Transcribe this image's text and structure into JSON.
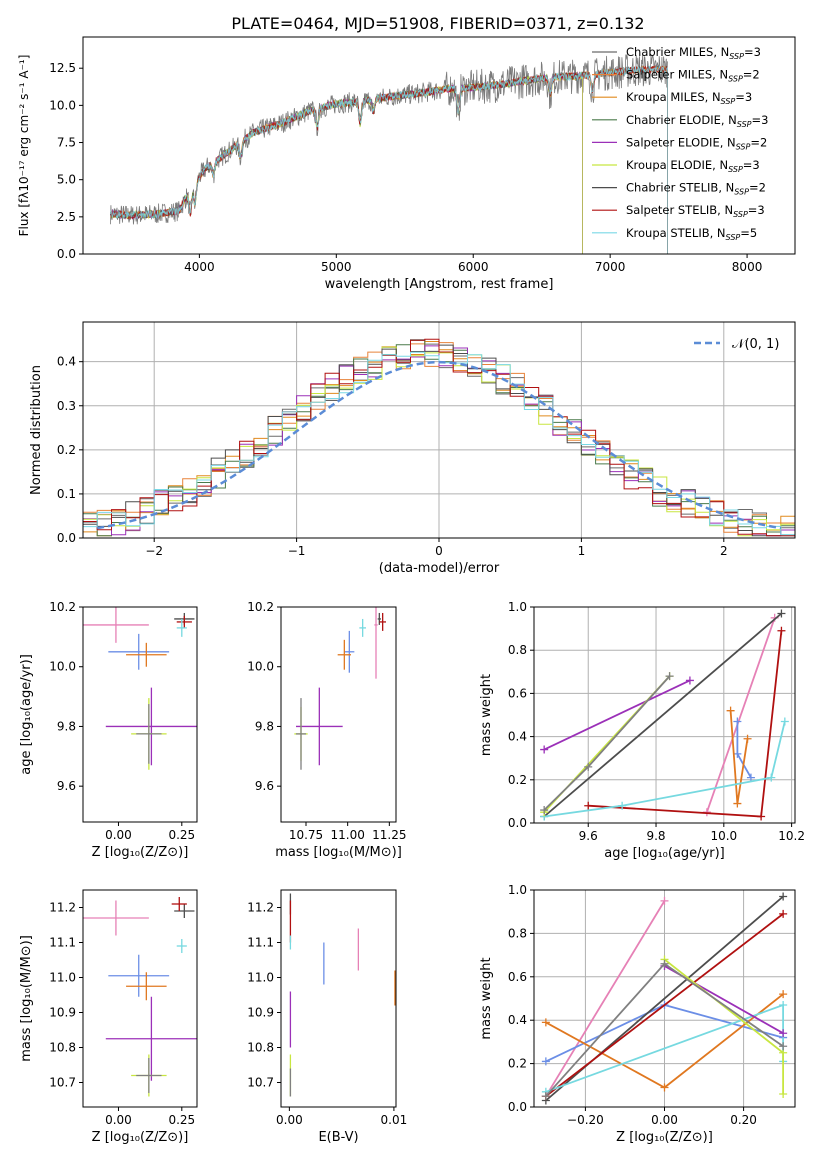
{
  "figure": {
    "title": "PLATE=0464, MJD=51908, FIBERID=0371, z=0.132"
  },
  "colors": {
    "models": [
      "#6b6b6b",
      "#e8833a",
      "#e08a1e",
      "#4a7a4a",
      "#9b30b8",
      "#c8e640",
      "#4d4d4d",
      "#b01010",
      "#7ad8e6"
    ],
    "cases": [
      "#e681b6",
      "#6b8ee6",
      "#e07820",
      "#4d4d4d",
      "#b01010",
      "#76d9e0",
      "#9b30b8",
      "#c8e640",
      "#808080"
    ],
    "gauss": "#5b8cd6",
    "grid": "#b0b0b0"
  },
  "chart_data": [
    {
      "id": "spectrum",
      "type": "line",
      "xlabel": "wavelength [Angstrom, rest frame]",
      "ylabel": "Flux [fλ10⁻¹⁷ erg cm⁻² s⁻¹ A⁻¹]",
      "xlim": [
        3150,
        8350
      ],
      "ylim": [
        0,
        14.6
      ],
      "xticks": [
        4000,
        5000,
        6000,
        7000,
        8000
      ],
      "yticks": [
        0.0,
        2.5,
        5.0,
        7.5,
        10.0,
        12.5
      ],
      "legend_position": "top-right",
      "continuum": {
        "x": [
          3350,
          3500,
          3700,
          3850,
          3950,
          4050,
          4200,
          4400,
          4600,
          4800,
          5000,
          5200,
          5400,
          5600,
          5800,
          6000,
          6200,
          6400,
          6600,
          6800,
          7000,
          7200,
          7400
        ],
        "y": [
          2.7,
          2.6,
          2.7,
          2.9,
          4.6,
          5.8,
          6.8,
          8.2,
          8.8,
          9.6,
          10.1,
          10.3,
          10.6,
          10.8,
          11.1,
          11.2,
          11.4,
          11.7,
          11.9,
          12.0,
          12.2,
          12.4,
          12.4
        ]
      },
      "series": [
        {
          "name": "Chabrier MILES, N_SSP=3",
          "xmax": 7420
        },
        {
          "name": "Salpeter MILES, N_SSP=2",
          "xmax": 7420
        },
        {
          "name": "Kroupa MILES, N_SSP=3",
          "xmax": 7420
        },
        {
          "name": "Chabrier ELODIE, N_SSP=3",
          "xmax": 6800
        },
        {
          "name": "Salpeter ELODIE, N_SSP=2",
          "xmax": 6800
        },
        {
          "name": "Kroupa ELODIE, N_SSP=3",
          "xmax": 6800
        },
        {
          "name": "Chabrier STELIB, N_SSP=2",
          "xmax": 7420
        },
        {
          "name": "Salpeter STELIB, N_SSP=3",
          "xmax": 7420
        },
        {
          "name": "Kroupa STELIB, N_SSP=5",
          "xmax": 7420
        }
      ]
    },
    {
      "id": "residuals",
      "type": "histogram",
      "xlabel": "(data-model)/error",
      "ylabel": "Normed distribution",
      "xlim": [
        -2.5,
        2.5
      ],
      "ylim": [
        0,
        0.49
      ],
      "xticks": [
        -2,
        -1,
        0,
        1,
        2
      ],
      "yticks": [
        0.0,
        0.1,
        0.2,
        0.3,
        0.4
      ],
      "grid": true,
      "legend_position": "top-right",
      "legend": [
        "𝒩(0, 1)"
      ],
      "bin_width": 0.1
    },
    {
      "id": "age_vs_Z",
      "type": "errorbar",
      "xlabel": "Z [log₁₀(Z/Z⊙)]",
      "ylabel": "age  [log₁₀(age/yr)]",
      "xlim": [
        -0.14,
        0.31
      ],
      "ylim": [
        9.48,
        10.2
      ],
      "xticks": [
        0.0,
        0.25
      ],
      "yticks": [
        9.6,
        9.8,
        10.0,
        10.2
      ],
      "points": [
        {
          "x": -0.01,
          "y": 10.14,
          "xerr": 0.13,
          "yerr": 0.06
        },
        {
          "x": 0.08,
          "y": 10.05,
          "xerr": 0.12,
          "yerr": 0.06
        },
        {
          "x": 0.11,
          "y": 10.04,
          "xerr": 0.08,
          "yerr": 0.04
        },
        {
          "x": 0.26,
          "y": 10.16,
          "xerr": 0.04,
          "yerr": 0.02
        },
        {
          "x": 0.26,
          "y": 10.15,
          "xerr": 0.03,
          "yerr": 0.02
        },
        {
          "x": 0.25,
          "y": 10.13,
          "xerr": 0.02,
          "yerr": 0.03
        },
        {
          "x": 0.13,
          "y": 9.8,
          "xerr": 0.18,
          "yerr": 0.13
        },
        {
          "x": 0.12,
          "y": 9.775,
          "xerr": 0.07,
          "yerr": 0.12
        },
        {
          "x": 0.12,
          "y": 9.775,
          "xerr": 0.05,
          "yerr": 0.1
        }
      ]
    },
    {
      "id": "age_vs_mass",
      "type": "errorbar",
      "xlabel": "mass [log₁₀(M/M⊙)]",
      "xlim": [
        10.6,
        11.29
      ],
      "ylim": [
        9.48,
        10.2
      ],
      "xticks": [
        10.75,
        11.0,
        11.25
      ],
      "yticks": [
        9.6,
        9.8,
        10.0,
        10.2
      ],
      "points": [
        {
          "x": 11.17,
          "y": 10.14,
          "xerr": 0.01,
          "yerr": 0.18
        },
        {
          "x": 11.01,
          "y": 10.05,
          "xerr": 0.03,
          "yerr": 0.07
        },
        {
          "x": 10.98,
          "y": 10.04,
          "xerr": 0.04,
          "yerr": 0.05
        },
        {
          "x": 11.19,
          "y": 10.16,
          "xerr": 0.01,
          "yerr": 0.02
        },
        {
          "x": 11.21,
          "y": 10.15,
          "xerr": 0.02,
          "yerr": 0.03
        },
        {
          "x": 11.09,
          "y": 10.13,
          "xerr": 0.02,
          "yerr": 0.03
        },
        {
          "x": 10.83,
          "y": 9.8,
          "xerr": 0.14,
          "yerr": 0.13
        },
        {
          "x": 10.72,
          "y": 9.775,
          "xerr": 0.04,
          "yerr": 0.09
        },
        {
          "x": 10.72,
          "y": 9.775,
          "xerr": 0.03,
          "yerr": 0.12
        }
      ]
    },
    {
      "id": "weight_vs_age",
      "type": "line",
      "xlabel": "age  [log₁₀(age/yr)]",
      "ylabel": "mass weight",
      "xlim": [
        9.44,
        10.21
      ],
      "ylim": [
        0,
        1.0
      ],
      "xticks": [
        9.6,
        9.8,
        10.0,
        10.2
      ],
      "yticks": [
        0.0,
        0.2,
        0.4,
        0.6,
        0.8,
        1.0
      ],
      "grid": true,
      "series": [
        {
          "x": [
            9.95,
            10.15
          ],
          "y": [
            0.05,
            0.95
          ]
        },
        {
          "x": [
            10.04,
            10.04,
            10.08
          ],
          "y": [
            0.47,
            0.32,
            0.21
          ]
        },
        {
          "x": [
            10.02,
            10.04,
            10.07
          ],
          "y": [
            0.52,
            0.09,
            0.39
          ]
        },
        {
          "x": [
            9.47,
            10.17
          ],
          "y": [
            0.03,
            0.97
          ]
        },
        {
          "x": [
            9.6,
            10.11,
            10.17
          ],
          "y": [
            0.08,
            0.03,
            0.89
          ]
        },
        {
          "x": [
            9.47,
            9.7,
            10.14,
            10.18
          ],
          "y": [
            0.03,
            0.08,
            0.21,
            0.47
          ]
        },
        {
          "x": [
            9.47,
            9.9
          ],
          "y": [
            0.34,
            0.66
          ]
        },
        {
          "x": [
            9.47,
            9.84
          ],
          "y": [
            0.05,
            0.68
          ]
        },
        {
          "x": [
            9.47,
            9.6,
            9.84
          ],
          "y": [
            0.06,
            0.26,
            0.68
          ]
        }
      ]
    },
    {
      "id": "mass_vs_Z",
      "type": "errorbar",
      "xlabel": "Z [log₁₀(Z/Z⊙)]",
      "ylabel": "mass [log₁₀(M/M⊙)]",
      "xlim": [
        -0.14,
        0.31
      ],
      "ylim": [
        10.63,
        11.25
      ],
      "xticks": [
        0.0,
        0.25
      ],
      "yticks": [
        10.7,
        10.8,
        10.9,
        11.0,
        11.1,
        11.2
      ],
      "points": [
        {
          "x": -0.01,
          "y": 11.17,
          "xerr": 0.13,
          "yerr": 0.05
        },
        {
          "x": 0.08,
          "y": 11.005,
          "xerr": 0.12,
          "yerr": 0.06
        },
        {
          "x": 0.11,
          "y": 10.975,
          "xerr": 0.08,
          "yerr": 0.04
        },
        {
          "x": 0.26,
          "y": 11.19,
          "xerr": 0.04,
          "yerr": 0.02
        },
        {
          "x": 0.24,
          "y": 11.21,
          "xerr": 0.03,
          "yerr": 0.02
        },
        {
          "x": 0.25,
          "y": 11.09,
          "xerr": 0.02,
          "yerr": 0.02
        },
        {
          "x": 0.13,
          "y": 10.825,
          "xerr": 0.18,
          "yerr": 0.12
        },
        {
          "x": 0.12,
          "y": 10.72,
          "xerr": 0.07,
          "yerr": 0.06
        },
        {
          "x": 0.12,
          "y": 10.72,
          "xerr": 0.05,
          "yerr": 0.05
        }
      ]
    },
    {
      "id": "mass_vs_ebv",
      "type": "errorbar",
      "xlabel": "E(B-V)",
      "xlim": [
        -0.0008,
        0.0102
      ],
      "ylim": [
        10.63,
        11.25
      ],
      "xticks": [
        0.0,
        0.01
      ],
      "yticks": [
        10.7,
        10.8,
        10.9,
        11.0,
        11.1,
        11.2
      ],
      "points": [
        {
          "x": 0.0066,
          "y": 11.08,
          "xerr": 0,
          "yerr": 0.06
        },
        {
          "x": 0.0033,
          "y": 11.04,
          "xerr": 0,
          "yerr": 0.06
        },
        {
          "x": 0.0101,
          "y": 10.97,
          "xerr": 0,
          "yerr": 0.05
        },
        {
          "x": 0.0001,
          "y": 11.21,
          "xerr": 0,
          "yerr": 0.03
        },
        {
          "x": 0.0001,
          "y": 11.16,
          "xerr": 0,
          "yerr": 0.06
        },
        {
          "x": 0.0001,
          "y": 11.1,
          "xerr": 0,
          "yerr": 0.02
        },
        {
          "x": 0.0001,
          "y": 10.88,
          "xerr": 0,
          "yerr": 0.08
        },
        {
          "x": 0.0001,
          "y": 10.72,
          "xerr": 0,
          "yerr": 0.06
        },
        {
          "x": 0.0001,
          "y": 10.7,
          "xerr": 0,
          "yerr": 0.04
        }
      ]
    },
    {
      "id": "weight_vs_Z",
      "type": "line",
      "xlabel": "Z [log₁₀(Z/Z⊙)]",
      "ylabel": "mass weight",
      "xlim": [
        -0.33,
        0.33
      ],
      "ylim": [
        0,
        1.0
      ],
      "xticks": [
        -0.2,
        0.0,
        0.2
      ],
      "yticks": [
        0.0,
        0.2,
        0.4,
        0.6,
        0.8,
        1.0
      ],
      "grid": true,
      "series": [
        {
          "x": [
            -0.3,
            0.0
          ],
          "y": [
            0.05,
            0.95
          ]
        },
        {
          "x": [
            -0.3,
            0.0,
            0.3
          ],
          "y": [
            0.21,
            0.47,
            0.32
          ]
        },
        {
          "x": [
            -0.3,
            0.0,
            0.3
          ],
          "y": [
            0.39,
            0.09,
            0.52
          ]
        },
        {
          "x": [
            -0.3,
            0.3
          ],
          "y": [
            0.03,
            0.97
          ]
        },
        {
          "x": [
            -0.3,
            0.3
          ],
          "y": [
            0.05,
            0.89
          ]
        },
        {
          "x": [
            -0.3,
            0.3,
            0.3
          ],
          "y": [
            0.07,
            0.47,
            0.21
          ]
        },
        {
          "x": [
            0.0,
            0.3
          ],
          "y": [
            0.65,
            0.34
          ]
        },
        {
          "x": [
            0.0,
            0.3,
            0.3
          ],
          "y": [
            0.68,
            0.25,
            0.06
          ]
        },
        {
          "x": [
            -0.3,
            0.0,
            0.3
          ],
          "y": [
            0.05,
            0.66,
            0.28
          ]
        }
      ]
    }
  ]
}
